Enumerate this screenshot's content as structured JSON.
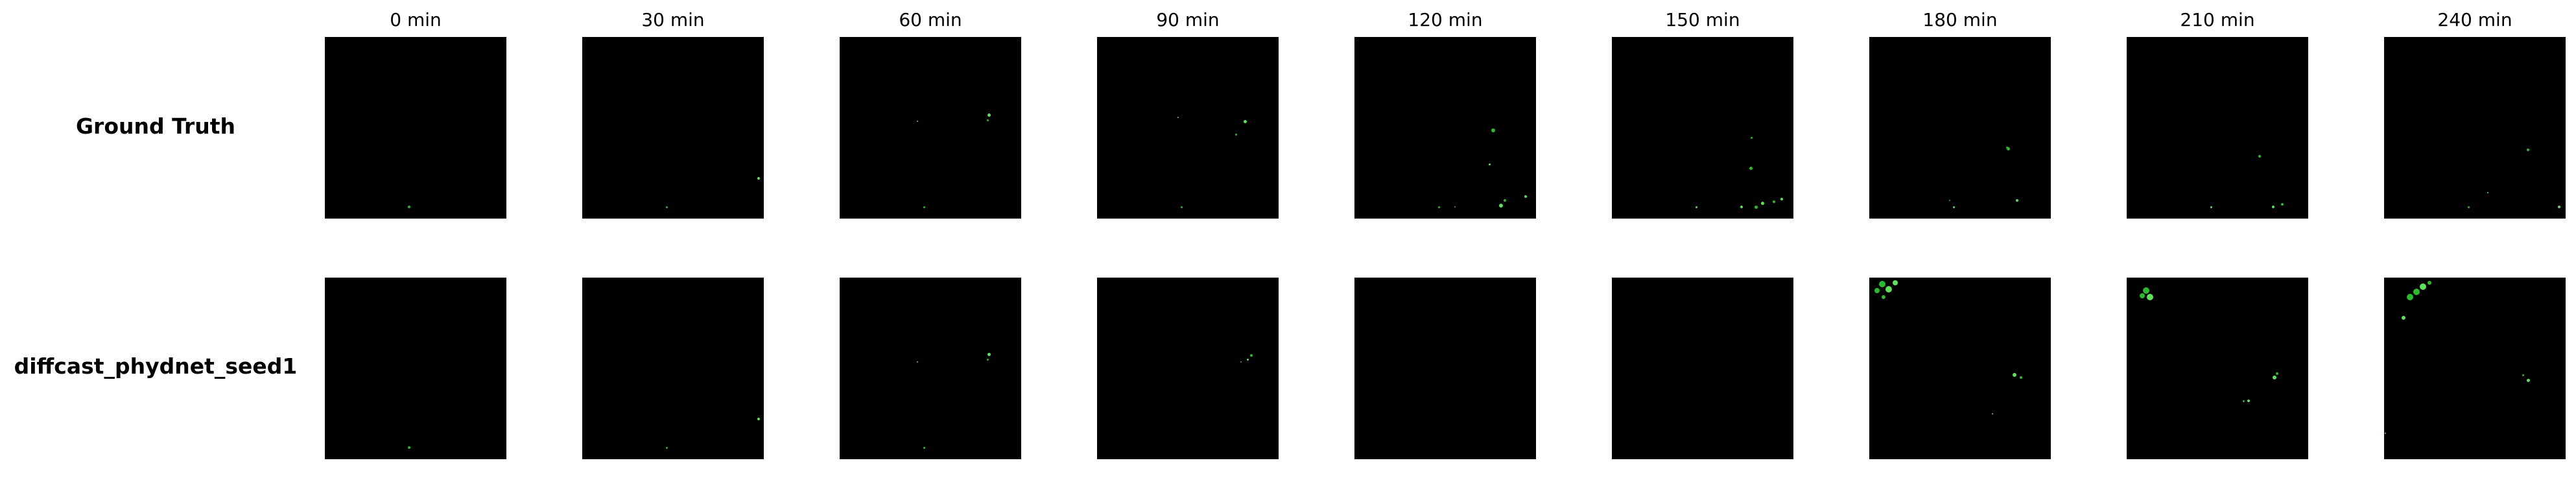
{
  "columns": [
    "0 min",
    "30 min",
    "60 min",
    "90 min",
    "120 min",
    "150 min",
    "180 min",
    "210 min",
    "240 min"
  ],
  "rows": [
    {
      "label": "Ground Truth"
    },
    {
      "label": "diffcast_phydnet_seed1"
    }
  ],
  "colors": {
    "background": "#000000",
    "echo": "#2db82d",
    "echo_light": "#5ee05e"
  }
}
